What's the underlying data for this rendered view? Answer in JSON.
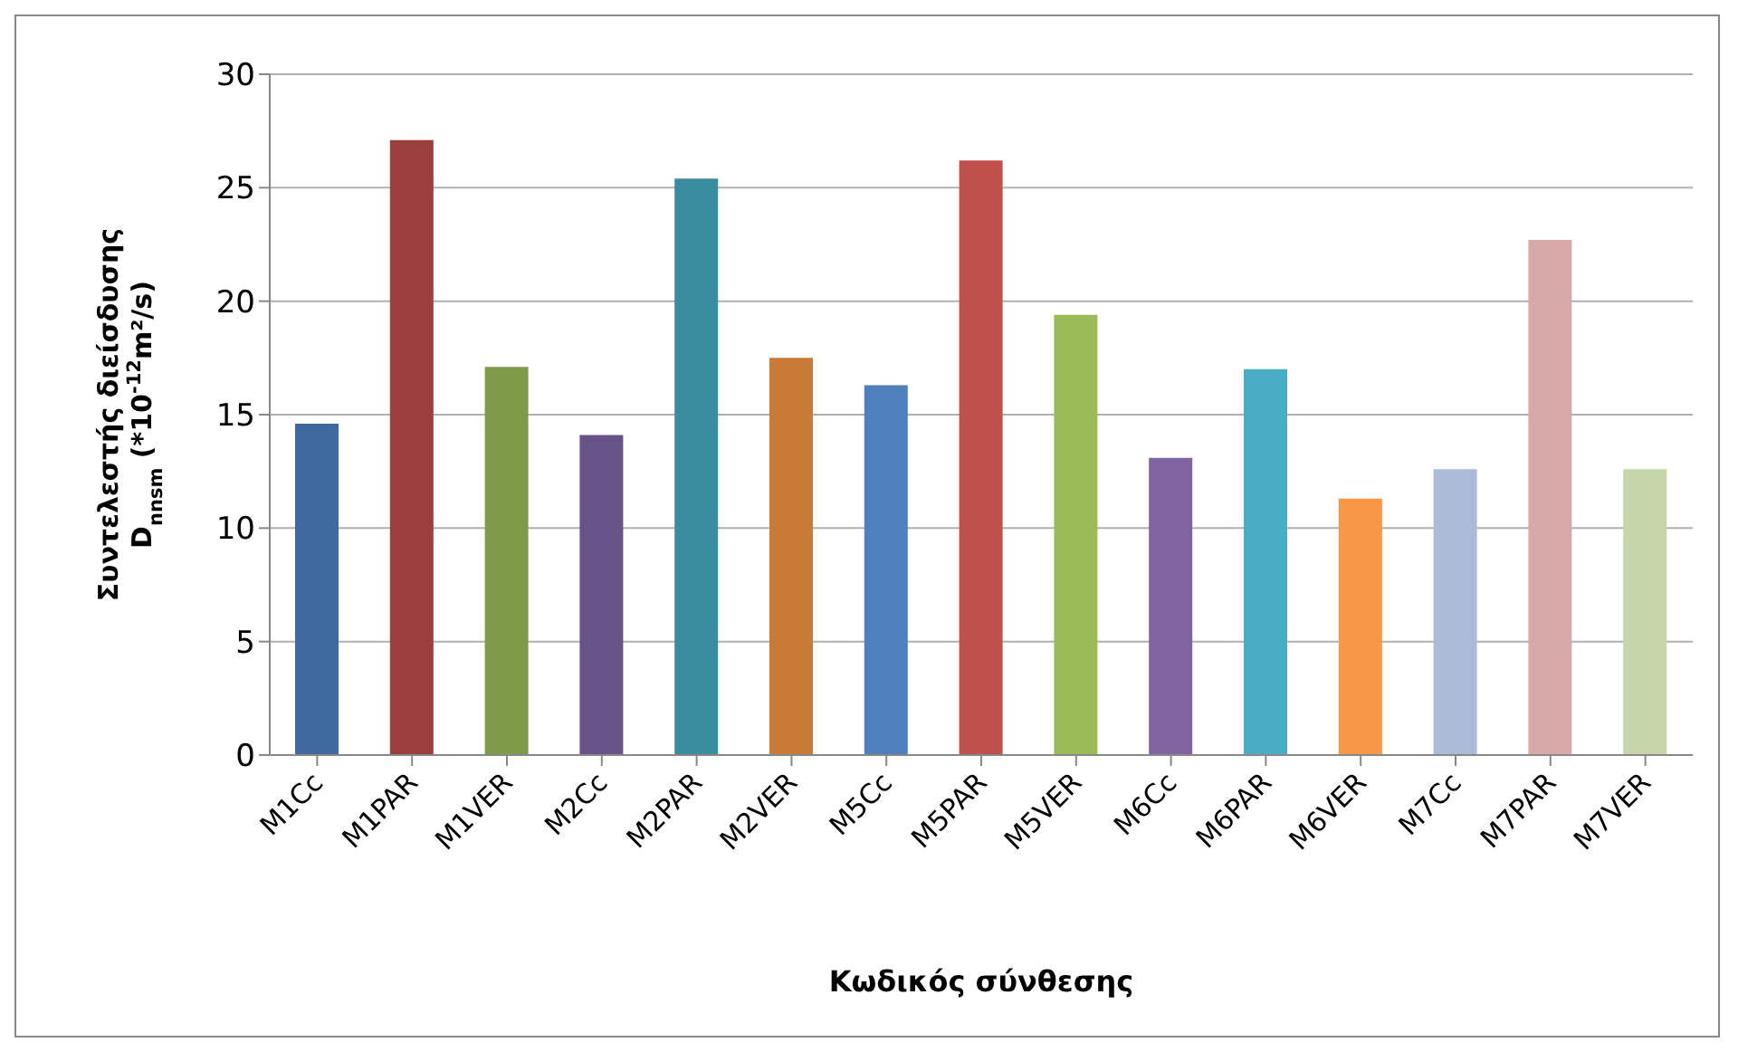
{
  "chart_data": {
    "type": "bar",
    "xlabel": "Κωδικός σύνθεσης",
    "ylabel": "Συντελεστής διείσδυσης D$_{nnsm}$ (*10$^{-12}$m²/s)",
    "categories": [
      "M1Cc",
      "M1PAR",
      "M1VER",
      "M2Cc",
      "M2PAR",
      "M2VER",
      "M5Cc",
      "M5PAR",
      "M5VER",
      "M6Cc",
      "M6PAR",
      "M6VER",
      "M7Cc",
      "M7PAR",
      "M7VER"
    ],
    "values": [
      14.6,
      27.1,
      17.1,
      14.1,
      25.4,
      17.5,
      16.3,
      26.2,
      19.4,
      13.1,
      17.0,
      11.3,
      12.6,
      22.7,
      12.6
    ],
    "colors": [
      "#4069a0",
      "#9c3e3d",
      "#7f9a48",
      "#68528a",
      "#3b8ba1",
      "#cb7936",
      "#4f80bc",
      "#c0504d",
      "#9bbb59",
      "#8064a2",
      "#4bacc6",
      "#f79646",
      "#aabad7",
      "#d9a9aa",
      "#c6d6aa"
    ],
    "ylim": [
      0,
      30
    ],
    "yticks": [
      0,
      5,
      10,
      15,
      20,
      25,
      30
    ],
    "grid": "y",
    "legend": false
  }
}
